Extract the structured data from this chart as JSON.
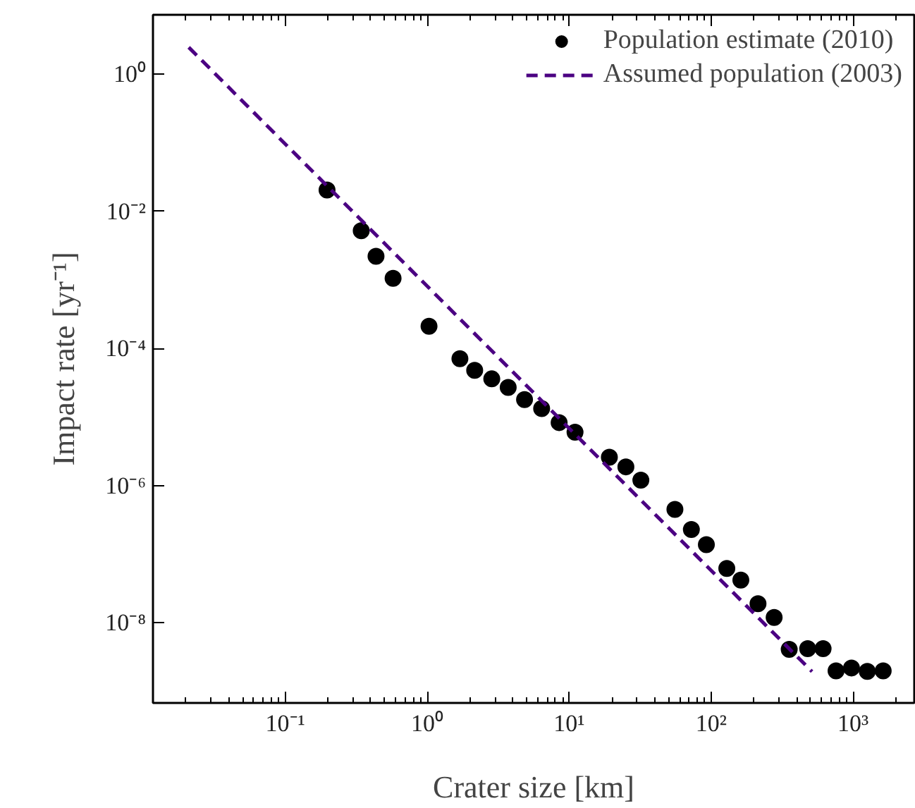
{
  "chart_data": {
    "type": "scatter",
    "xlabel": "Crater size [km]",
    "ylabel": "Impact rate [yr⁻¹]",
    "log": "xy",
    "legend": "top right",
    "grid": false,
    "xlim": [
      0.0117,
      2700
    ],
    "ylim": [
      6.8e-10,
      7.3
    ],
    "xticks": [
      {
        "value": 0.1,
        "label": "10⁻¹"
      },
      {
        "value": 1,
        "label": "10⁰"
      },
      {
        "value": 10,
        "label": "10¹"
      },
      {
        "value": 100,
        "label": "10²"
      },
      {
        "value": 1000,
        "label": "10³"
      }
    ],
    "yticks": [
      {
        "value": 1e-08,
        "label": "10⁻⁸"
      },
      {
        "value": 1e-06,
        "label": "10⁻⁶"
      },
      {
        "value": 0.0001,
        "label": "10⁻⁴"
      },
      {
        "value": 0.01,
        "label": "10⁻²"
      },
      {
        "value": 1,
        "label": "10⁰"
      }
    ],
    "series": [
      {
        "name": "Population estimate (2010)",
        "marker": "circle",
        "color": "#000000",
        "x": [
          0.197,
          0.343,
          0.436,
          0.575,
          1.03,
          1.7,
          2.16,
          2.85,
          3.72,
          4.85,
          6.4,
          8.5,
          11.0,
          19.2,
          25.1,
          32,
          55.6,
          72.6,
          92.6,
          129,
          162,
          214,
          278,
          355,
          479,
          615,
          759,
          975,
          1260,
          1630
        ],
        "values": [
          0.0204,
          0.0052,
          0.0022,
          0.00105,
          0.00021,
          7.1e-05,
          4.8e-05,
          3.6e-05,
          2.7e-05,
          1.8e-05,
          1.33e-05,
          8.3e-06,
          6e-06,
          2.6e-06,
          1.88e-06,
          1.2e-06,
          4.5e-07,
          2.3e-07,
          1.38e-07,
          6.2e-08,
          4.2e-08,
          1.9e-08,
          1.2e-08,
          4.1e-09,
          4.2e-09,
          4.2e-09,
          2e-09,
          2.2e-09,
          1.96e-09,
          2e-09
        ]
      },
      {
        "name": "Assumed population (2003)",
        "type": "line",
        "line_style": "dashed",
        "color": "#4b0082",
        "x": [
          0.0209,
          514
        ],
        "values": [
          2.45,
          1.95e-09
        ]
      }
    ]
  }
}
